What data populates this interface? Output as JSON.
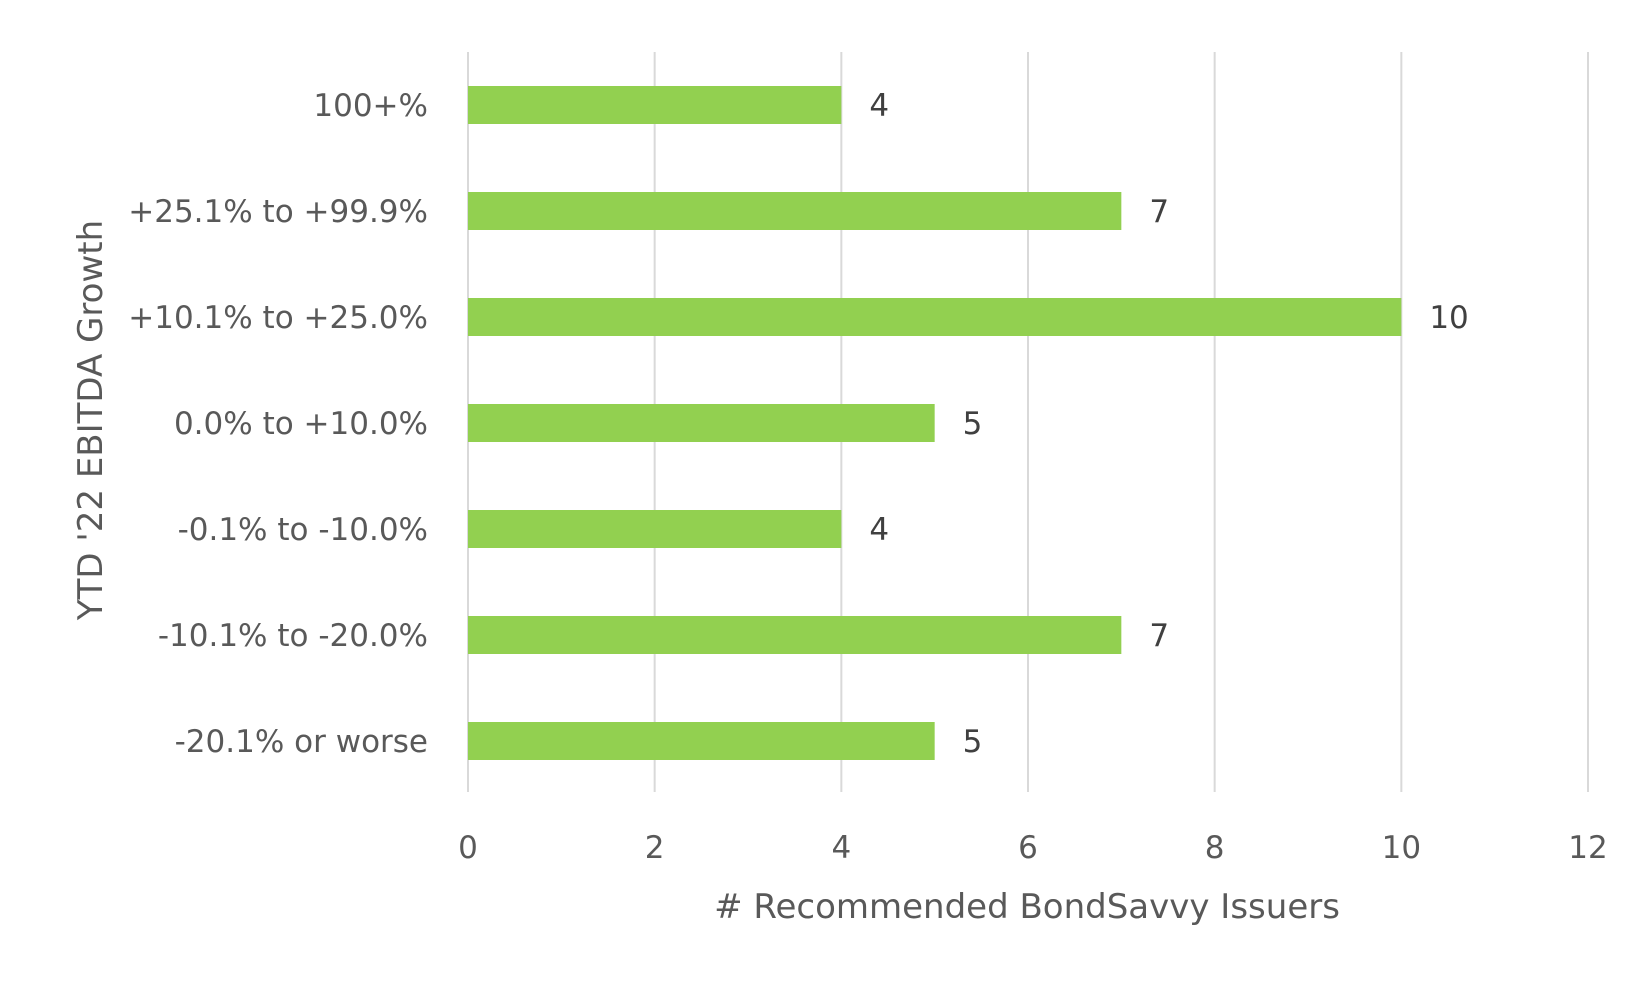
{
  "chart_data": {
    "type": "bar",
    "orientation": "horizontal",
    "categories": [
      "100+%",
      "+25.1% to +99.9%",
      "+10.1% to +25.0%",
      "0.0% to +10.0%",
      "-0.1% to -10.0%",
      "-10.1% to -20.0%",
      "-20.1% or worse"
    ],
    "series": [
      {
        "values": [
          4,
          7,
          10,
          5,
          4,
          7,
          5
        ],
        "color": "#92d050"
      }
    ],
    "data_labels": [
      "4",
      "7",
      "10",
      "5",
      "4",
      "7",
      "5"
    ],
    "xlabel": "# Recommended BondSavvy Issuers",
    "ylabel": "YTD '22 EBITDA Growth",
    "xlim": [
      0,
      12
    ],
    "x_ticks": [
      0,
      2,
      4,
      6,
      8,
      10,
      12
    ],
    "grid": "vertical",
    "legend": "none",
    "colors": {
      "bar": "#92d050",
      "grid": "#d9d9d9",
      "text": "#595959",
      "data_label": "#404040"
    }
  }
}
